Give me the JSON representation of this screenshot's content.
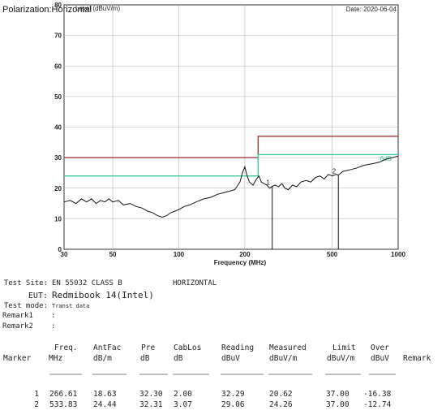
{
  "header": {
    "polarization": "Polarization:Horizontal"
  },
  "chart_data": {
    "type": "line",
    "title_left": "Level (dBuV/m)",
    "date_text": "Date: 2020-06-04",
    "xlabel": "Frequency (MHz)",
    "x_scale": "log",
    "xlim": [
      30,
      1000
    ],
    "ylim": [
      0,
      80
    ],
    "x_ticks": [
      30,
      50,
      100,
      200,
      500,
      1000
    ],
    "y_ticks": [
      0,
      10,
      20,
      30,
      40,
      50,
      60,
      70,
      80
    ],
    "grid": true,
    "limit_line": {
      "color": "#a63a3a",
      "points": [
        [
          30,
          30
        ],
        [
          230,
          30
        ],
        [
          230,
          37
        ],
        [
          1000,
          37
        ]
      ]
    },
    "margin_line": {
      "color": "#3cc8a0",
      "label": "6dB",
      "points": [
        [
          30,
          24
        ],
        [
          230,
          24
        ],
        [
          230,
          31
        ],
        [
          1000,
          31
        ]
      ]
    },
    "series": [
      {
        "color": "#111111",
        "points": [
          [
            30,
            15.5
          ],
          [
            32,
            16
          ],
          [
            34,
            15
          ],
          [
            36,
            16.5
          ],
          [
            38,
            15.5
          ],
          [
            40,
            16.5
          ],
          [
            42,
            15
          ],
          [
            44,
            16
          ],
          [
            46,
            15.5
          ],
          [
            48,
            16.5
          ],
          [
            50,
            15.5
          ],
          [
            53,
            16
          ],
          [
            56,
            14.5
          ],
          [
            60,
            15
          ],
          [
            64,
            14
          ],
          [
            68,
            13.5
          ],
          [
            72,
            12.5
          ],
          [
            76,
            12
          ],
          [
            80,
            11
          ],
          [
            84,
            10.5
          ],
          [
            88,
            11
          ],
          [
            92,
            12
          ],
          [
            96,
            12.5
          ],
          [
            100,
            13
          ],
          [
            106,
            14
          ],
          [
            112,
            14.5
          ],
          [
            120,
            15.5
          ],
          [
            130,
            16.5
          ],
          [
            140,
            17
          ],
          [
            150,
            18
          ],
          [
            160,
            18.5
          ],
          [
            170,
            19
          ],
          [
            180,
            19.5
          ],
          [
            190,
            22
          ],
          [
            195,
            25
          ],
          [
            200,
            27
          ],
          [
            205,
            24
          ],
          [
            210,
            22
          ],
          [
            218,
            21
          ],
          [
            226,
            23
          ],
          [
            232,
            24
          ],
          [
            238,
            22
          ],
          [
            245,
            21.5
          ],
          [
            252,
            21
          ],
          [
            260,
            20
          ],
          [
            266,
            20.6
          ],
          [
            275,
            21
          ],
          [
            285,
            20.5
          ],
          [
            295,
            21.5
          ],
          [
            305,
            20
          ],
          [
            315,
            19.5
          ],
          [
            330,
            21
          ],
          [
            345,
            20.5
          ],
          [
            360,
            22
          ],
          [
            380,
            22.5
          ],
          [
            400,
            22
          ],
          [
            420,
            23.5
          ],
          [
            440,
            24
          ],
          [
            460,
            23
          ],
          [
            480,
            24.5
          ],
          [
            500,
            24
          ],
          [
            520,
            24.5
          ],
          [
            534,
            24.3
          ],
          [
            560,
            25.5
          ],
          [
            600,
            26
          ],
          [
            640,
            26.5
          ],
          [
            700,
            27.5
          ],
          [
            760,
            28
          ],
          [
            820,
            28.5
          ],
          [
            880,
            29.5
          ],
          [
            940,
            30
          ],
          [
            1000,
            30.5
          ]
        ]
      }
    ],
    "markers": [
      {
        "label": "1",
        "x": 266.61,
        "y": 20.62
      },
      {
        "label": "2",
        "x": 533.83,
        "y": 24.26
      }
    ]
  },
  "info": {
    "lines": [
      {
        "label": "Test Site:",
        "value": "EN 55032 CLASS B",
        "extra": "HORIZONTAL"
      },
      {
        "label": "EUT:",
        "value": "Redmibook 14(Intel)",
        "extra": ""
      },
      {
        "label": "Test mode:",
        "value": "Transt data",
        "extra": ""
      },
      {
        "label": "Remark1",
        "value": ":",
        "extra": ""
      },
      {
        "label": "Remark2",
        "value": ":",
        "extra": ""
      }
    ]
  },
  "table": {
    "head1": [
      "Freq.",
      "AntFac",
      "Pre",
      "CabLos",
      "Reading",
      "Measured",
      "Limit",
      "Over"
    ],
    "head2": [
      "Marker",
      "MHz",
      "dB/m",
      "dB",
      "dB",
      "dBuV",
      "dBuV/m",
      "dBuV/m",
      "dBuV",
      "Remark"
    ],
    "rows": [
      [
        "1",
        "266.61",
        "18.63",
        "32.30",
        "2.00",
        "32.29",
        "20.62",
        "37.00",
        "-16.38"
      ],
      [
        "2",
        "533.83",
        "24.44",
        "32.31",
        "3.07",
        "29.06",
        "24.26",
        "37.00",
        "-12.74"
      ]
    ]
  }
}
